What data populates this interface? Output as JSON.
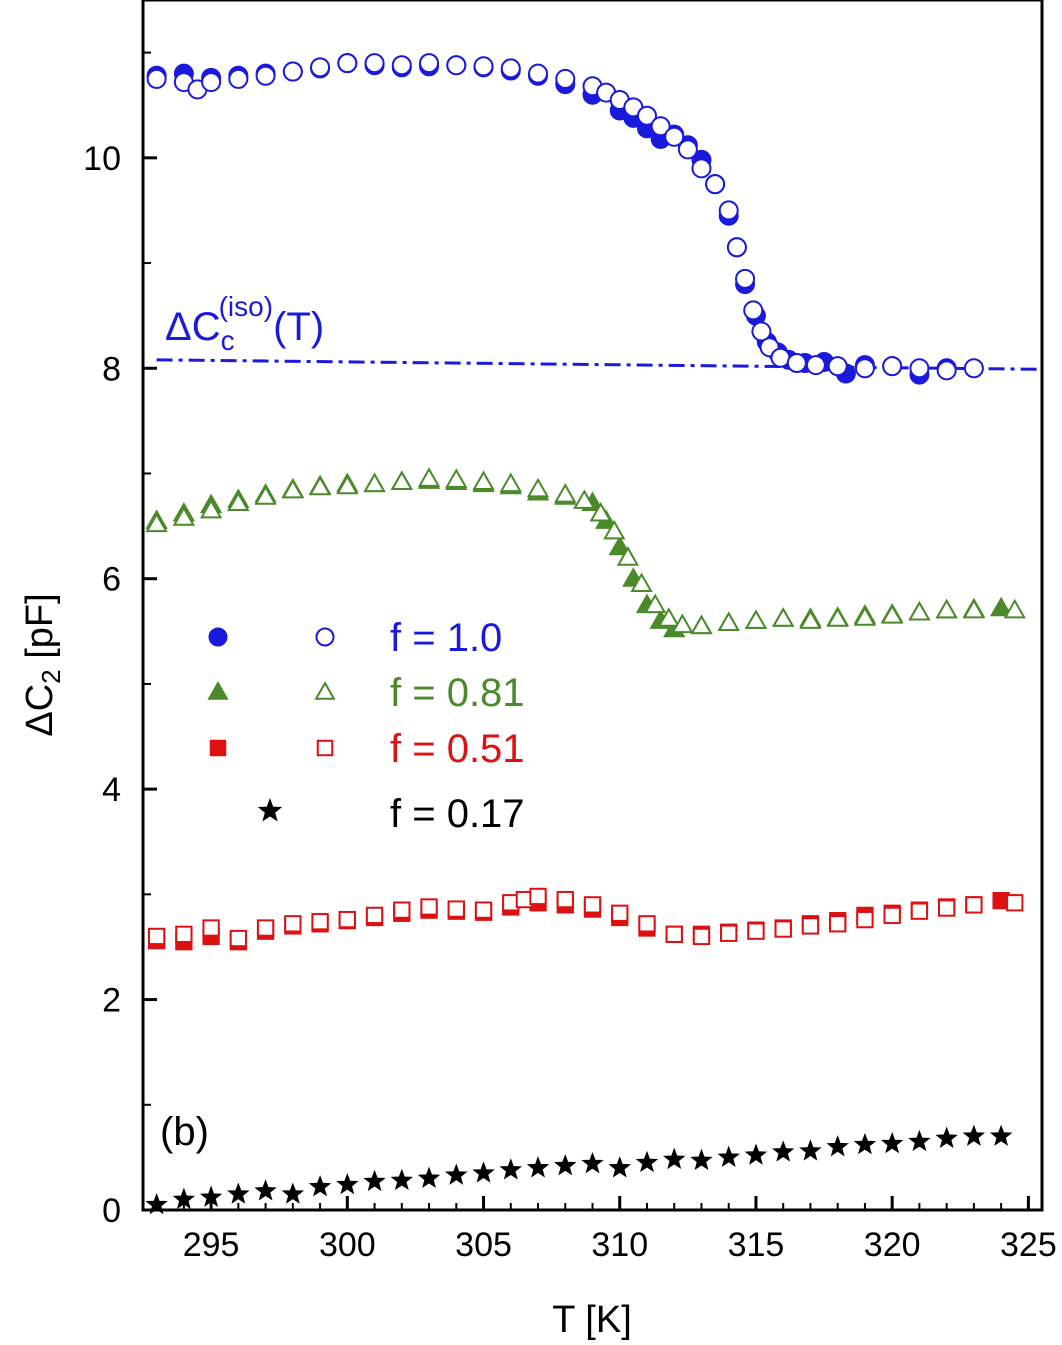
{
  "chart_data": {
    "type": "scatter",
    "title": "",
    "xlabel": "T [K]",
    "ylabel_main": "ΔC",
    "ylabel_sub": "2",
    "ylabel_unit": " [pF]",
    "xlim": [
      292.5,
      325.5
    ],
    "ylim": [
      0,
      11.5
    ],
    "xticks": [
      295,
      300,
      305,
      310,
      315,
      320,
      325
    ],
    "yticks": [
      0,
      2,
      4,
      6,
      8,
      10
    ],
    "panel_label": "(b)",
    "reference_line": {
      "label_main": "ΔC",
      "label_sub": "c",
      "label_sup": "(iso)",
      "label_tail": "(T)",
      "color": "#1a1adc",
      "x": [
        293,
        325.5
      ],
      "y": [
        8.08,
        7.99
      ]
    },
    "series": [
      {
        "name": "f = 1.0",
        "color": "#1a1adc",
        "marker": "circle",
        "filled": {
          "x": [
            293,
            294,
            295,
            296,
            297,
            298,
            299,
            300,
            301,
            302,
            303,
            304,
            305,
            306,
            307,
            308,
            309,
            310,
            310.5,
            311,
            311.5,
            312,
            312.5,
            313,
            313.5,
            314,
            314.3,
            314.6,
            315,
            315.4,
            315.8,
            316.2,
            316.8,
            317.5,
            318.3,
            319,
            320,
            321,
            322
          ],
          "y": [
            10.78,
            10.8,
            10.76,
            10.78,
            10.8,
            10.82,
            10.85,
            10.9,
            10.88,
            10.86,
            10.87,
            10.88,
            10.86,
            10.83,
            10.78,
            10.7,
            10.6,
            10.45,
            10.38,
            10.28,
            10.18,
            10.22,
            10.12,
            9.98,
            9.75,
            9.45,
            9.15,
            8.8,
            8.5,
            8.25,
            8.15,
            8.08,
            8.05,
            8.06,
            7.95,
            8.03,
            8.02,
            7.94,
            8.0
          ]
        },
        "open": {
          "x": [
            293,
            294,
            294.5,
            295,
            296,
            297,
            298,
            299,
            300,
            301,
            302,
            303,
            304,
            305,
            306,
            307,
            308,
            309,
            309.5,
            310,
            310.5,
            311,
            311.5,
            312,
            312.5,
            313,
            313.5,
            314,
            314.3,
            314.6,
            314.9,
            315.2,
            315.5,
            315.9,
            316.5,
            317.2,
            318,
            319,
            320,
            321,
            322,
            323
          ],
          "y": [
            10.75,
            10.72,
            10.65,
            10.72,
            10.75,
            10.78,
            10.82,
            10.86,
            10.9,
            10.9,
            10.88,
            10.9,
            10.88,
            10.87,
            10.85,
            10.8,
            10.75,
            10.68,
            10.62,
            10.55,
            10.48,
            10.4,
            10.3,
            10.2,
            10.08,
            9.9,
            9.75,
            9.5,
            9.15,
            8.85,
            8.55,
            8.35,
            8.2,
            8.1,
            8.05,
            8.03,
            8.02,
            8.0,
            8.02,
            8.0,
            7.98,
            8.0
          ]
        }
      },
      {
        "name": "f = 0.81",
        "color": "#4a8a2a",
        "marker": "triangle",
        "filled": {
          "x": [
            293,
            294,
            295,
            296,
            297,
            298,
            299,
            300,
            301,
            302,
            303,
            304,
            305,
            306,
            307,
            308,
            309,
            309.5,
            310,
            310.5,
            311,
            311.5,
            312,
            313,
            314,
            315,
            316,
            317,
            318,
            319,
            320,
            321,
            322,
            323,
            324
          ],
          "y": [
            6.55,
            6.62,
            6.7,
            6.75,
            6.8,
            6.85,
            6.88,
            6.9,
            6.9,
            6.92,
            6.93,
            6.92,
            6.9,
            6.88,
            6.82,
            6.78,
            6.72,
            6.55,
            6.3,
            6.0,
            5.75,
            5.6,
            5.52,
            5.55,
            5.58,
            5.6,
            5.62,
            5.62,
            5.63,
            5.65,
            5.66,
            5.68,
            5.7,
            5.71,
            5.72
          ]
        },
        "open": {
          "x": [
            293,
            294,
            295,
            296,
            297,
            298,
            299,
            300,
            301,
            302,
            303,
            304,
            305,
            306,
            307,
            308,
            308.7,
            309.3,
            309.8,
            310.3,
            310.8,
            311.3,
            311.8,
            312.3,
            313,
            314,
            315,
            316,
            317,
            318,
            319,
            320,
            321,
            322,
            323,
            324.5
          ],
          "y": [
            6.52,
            6.58,
            6.65,
            6.72,
            6.78,
            6.84,
            6.87,
            6.88,
            6.9,
            6.92,
            6.95,
            6.94,
            6.92,
            6.9,
            6.85,
            6.8,
            6.74,
            6.62,
            6.45,
            6.2,
            5.95,
            5.75,
            5.62,
            5.56,
            5.55,
            5.58,
            5.6,
            5.62,
            5.6,
            5.62,
            5.63,
            5.65,
            5.68,
            5.7,
            5.7,
            5.7
          ]
        }
      },
      {
        "name": "f = 0.51",
        "color": "#dd1111",
        "marker": "square",
        "filled": {
          "x": [
            293,
            294,
            295,
            296,
            297,
            298,
            299,
            300,
            301,
            302,
            303,
            304,
            305,
            306,
            307,
            308,
            309,
            310,
            311,
            312,
            313,
            314,
            315,
            316,
            317,
            318,
            319,
            320,
            321,
            322,
            323,
            324
          ],
          "y": [
            2.56,
            2.55,
            2.6,
            2.55,
            2.65,
            2.7,
            2.72,
            2.75,
            2.78,
            2.82,
            2.85,
            2.84,
            2.83,
            2.88,
            2.92,
            2.9,
            2.86,
            2.78,
            2.68,
            2.62,
            2.62,
            2.64,
            2.66,
            2.68,
            2.72,
            2.75,
            2.8,
            2.82,
            2.85,
            2.88,
            2.9,
            2.94
          ]
        },
        "open": {
          "x": [
            293,
            294,
            295,
            296,
            297,
            298,
            299,
            300,
            301,
            302,
            303,
            304,
            305,
            306,
            306.5,
            307,
            308,
            309,
            310,
            311,
            312,
            313,
            314,
            315,
            316,
            317,
            318,
            319,
            320,
            321,
            322,
            323,
            324.5
          ],
          "y": [
            2.6,
            2.62,
            2.68,
            2.58,
            2.68,
            2.72,
            2.74,
            2.76,
            2.8,
            2.85,
            2.88,
            2.86,
            2.85,
            2.92,
            2.95,
            2.98,
            2.95,
            2.9,
            2.82,
            2.72,
            2.62,
            2.6,
            2.63,
            2.65,
            2.67,
            2.7,
            2.72,
            2.76,
            2.8,
            2.84,
            2.87,
            2.9,
            2.92
          ]
        }
      },
      {
        "name": "f = 0.17",
        "color": "#000000",
        "marker": "star",
        "filled": {
          "x": [
            293,
            294,
            295,
            296,
            297,
            298,
            299,
            300,
            301,
            302,
            303,
            304,
            305,
            306,
            307,
            308,
            309,
            310,
            311,
            312,
            313,
            314,
            315,
            316,
            317,
            318,
            319,
            320,
            321,
            322,
            323,
            324
          ],
          "y": [
            0.05,
            0.1,
            0.12,
            0.15,
            0.18,
            0.15,
            0.22,
            0.24,
            0.27,
            0.28,
            0.3,
            0.33,
            0.35,
            0.38,
            0.4,
            0.42,
            0.44,
            0.4,
            0.45,
            0.48,
            0.47,
            0.5,
            0.52,
            0.55,
            0.56,
            0.6,
            0.62,
            0.63,
            0.65,
            0.68,
            0.7,
            0.7
          ]
        },
        "open": {
          "x": [],
          "y": []
        }
      }
    ]
  }
}
